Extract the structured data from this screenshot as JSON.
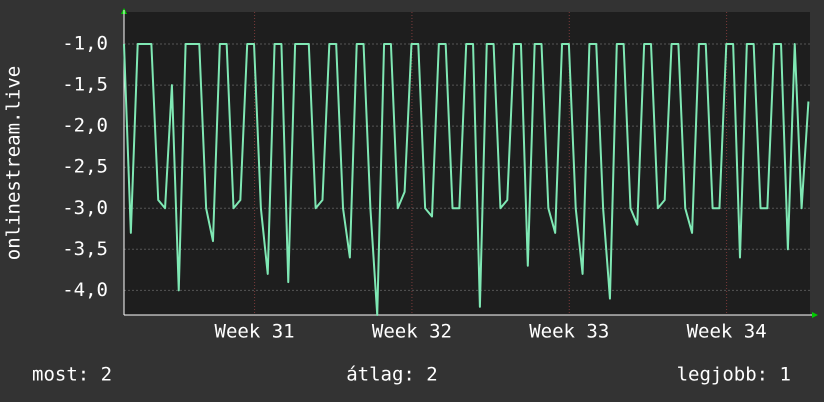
{
  "chart_data": {
    "type": "line",
    "ylabel": "onlinestream.live",
    "x": [
      30.17,
      30.2135,
      30.257,
      30.3005,
      30.344,
      30.3875,
      30.431,
      30.4745,
      30.518,
      30.5615,
      30.605,
      30.6485,
      30.692,
      30.7355,
      30.779,
      30.8225,
      30.866,
      30.9095,
      30.953,
      30.9965,
      31.04,
      31.0835,
      31.127,
      31.1705,
      31.214,
      31.2575,
      31.301,
      31.3445,
      31.388,
      31.4315,
      31.475,
      31.5185,
      31.562,
      31.6055,
      31.649,
      31.6925,
      31.736,
      31.7795,
      31.823,
      31.8665,
      31.91,
      31.9535,
      31.997,
      32.0405,
      32.084,
      32.1275,
      32.171,
      32.2145,
      32.258,
      32.3015,
      32.345,
      32.3885,
      32.432,
      32.4755,
      32.519,
      32.5625,
      32.606,
      32.6495,
      32.693,
      32.7365,
      32.78,
      32.8235,
      32.867,
      32.9105,
      32.954,
      32.9975,
      33.041,
      33.0845,
      33.128,
      33.1715,
      33.215,
      33.2585,
      33.302,
      33.3455,
      33.389,
      33.4325,
      33.476,
      33.5195,
      33.563,
      33.6065,
      33.65,
      33.6935,
      33.737,
      33.7805,
      33.824,
      33.8675,
      33.911,
      33.9545,
      33.998,
      34.0415,
      34.085,
      34.1285,
      34.172,
      34.2155,
      34.259,
      34.3025,
      34.346,
      34.3895,
      34.433,
      34.4765,
      34.52
    ],
    "series": [
      {
        "color": "#7fe8b4",
        "values": [
          -1,
          -3.3,
          -1,
          -1,
          -1,
          -2.9,
          -3,
          -1.5,
          -4,
          -1,
          -1,
          -1,
          -3,
          -3.4,
          -1,
          -1,
          -3,
          -2.9,
          -1,
          -1,
          -3,
          -3.8,
          -1,
          -1,
          -3.9,
          -1,
          -1,
          -1,
          -3,
          -2.9,
          -1,
          -1,
          -3,
          -3.6,
          -1,
          -1,
          -3,
          -4.3,
          -1,
          -1,
          -3,
          -2.8,
          -1,
          -1,
          -3,
          -3.1,
          -1,
          -1,
          -3,
          -3,
          -1,
          -1,
          -4.2,
          -1,
          -1,
          -3,
          -2.9,
          -1,
          -1,
          -3.7,
          -1,
          -1,
          -3,
          -3.3,
          -1,
          -1,
          -3,
          -3.8,
          -1,
          -1,
          -3,
          -4.1,
          -1,
          -1,
          -3,
          -3.2,
          -1,
          -1,
          -3,
          -2.9,
          -1,
          -1,
          -3,
          -3.3,
          -1,
          -1,
          -3,
          -3,
          -1,
          -1,
          -3.6,
          -1,
          -1,
          -3,
          -3,
          -1,
          -1,
          -3.5,
          -1,
          -3,
          -1.7
        ]
      }
    ],
    "xlim": [
      30.17,
      34.53
    ],
    "xticks": [
      {
        "value": 31,
        "label": "Week 31"
      },
      {
        "value": 32,
        "label": "Week 32"
      },
      {
        "value": 33,
        "label": "Week 33"
      },
      {
        "value": 34,
        "label": "Week 34"
      }
    ],
    "ylim": [
      -4.3,
      -0.61
    ],
    "yticks": [
      {
        "value": -1,
        "label": "-1,0"
      },
      {
        "value": -1.5,
        "label": "-1,5"
      },
      {
        "value": -2,
        "label": "-2,0"
      },
      {
        "value": -2.5,
        "label": "-2,5"
      },
      {
        "value": -3,
        "label": "-3,0"
      },
      {
        "value": -3.5,
        "label": "-3,5"
      },
      {
        "value": -4,
        "label": "-4,0"
      }
    ],
    "grid": true,
    "footer": [
      "most: 2",
      "átlag: 2",
      "legjobb: 1"
    ]
  }
}
